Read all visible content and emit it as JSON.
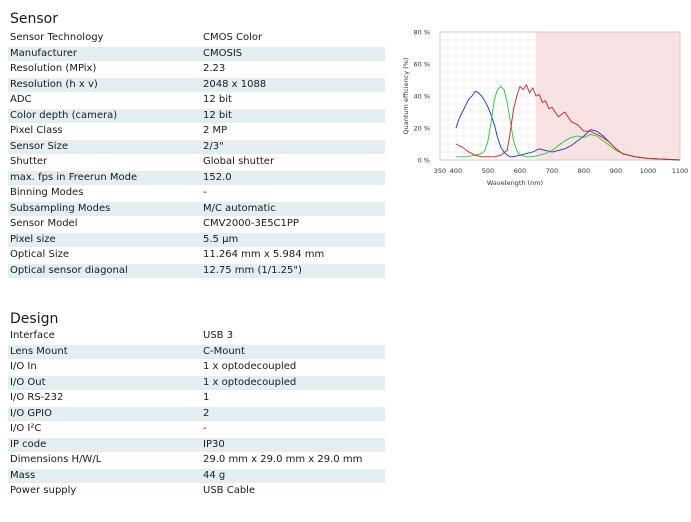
{
  "sensor_section": {
    "title": "Sensor",
    "rows": [
      {
        "label": "Sensor Technology",
        "value": "CMOS Color"
      },
      {
        "label": "Manufacturer",
        "value": "CMOSIS"
      },
      {
        "label": "Resolution (MPix)",
        "value": "2.23"
      },
      {
        "label": "Resolution (h x v)",
        "value": "2048 x 1088"
      },
      {
        "label": "ADC",
        "value": "12 bit"
      },
      {
        "label": "Color depth (camera)",
        "value": "12 bit"
      },
      {
        "label": "Pixel Class",
        "value": "2 MP"
      },
      {
        "label": "Sensor Size",
        "value": "2/3\""
      },
      {
        "label": "Shutter",
        "value": "Global shutter"
      },
      {
        "label": "max. fps in Freerun Mode",
        "value": "152.0"
      },
      {
        "label": "Binning Modes",
        "value": "-"
      },
      {
        "label": "Subsampling Modes",
        "value": "M/C automatic"
      },
      {
        "label": "Sensor Model",
        "value": "CMV2000-3E5C1PP"
      },
      {
        "label": "Pixel size",
        "value": "5.5 µm"
      },
      {
        "label": "Optical Size",
        "value": "11.264 mm x 5.984 mm"
      },
      {
        "label": "Optical sensor diagonal",
        "value": "12.75 mm (1/1.25\")"
      }
    ]
  },
  "design_section": {
    "title": "Design",
    "rows": [
      {
        "label": "Interface",
        "value": "USB 3"
      },
      {
        "label": "Lens Mount",
        "value": "C-Mount"
      },
      {
        "label": "I/O In",
        "value": "1 x optodecoupled"
      },
      {
        "label": "I/O Out",
        "value": "1 x optodecoupled"
      },
      {
        "label": "I/O RS-232",
        "value": "1"
      },
      {
        "label": "I/O GPIO",
        "value": "2"
      },
      {
        "label": "I/O I²C",
        "value": "-"
      },
      {
        "label": "IP code",
        "value": "IP30"
      },
      {
        "label": "Dimensions H/W/L",
        "value": "29.0 mm x 29.0 mm x 29.0 mm"
      },
      {
        "label": "Mass",
        "value": "44 g"
      },
      {
        "label": "Power supply",
        "value": "USB Cable"
      }
    ]
  },
  "chart_data": {
    "type": "line",
    "title": "",
    "xlabel": "Wavelength (nm)",
    "ylabel": "Quantum efficiency (%)",
    "xlim": [
      350,
      1100
    ],
    "ylim": [
      0,
      80
    ],
    "xticks": [
      350,
      400,
      500,
      600,
      700,
      800,
      900,
      1000,
      1100
    ],
    "yticks": [
      0,
      20,
      40,
      60,
      80
    ],
    "ytick_labels": [
      "0 %",
      "20 %",
      "40 %",
      "60 %",
      "80 %"
    ],
    "grid": true,
    "shaded_region": {
      "x_from": 650,
      "x_to": 1100,
      "color": "#fbe3e3"
    },
    "series": [
      {
        "color": "#1f2fd0",
        "x": [
          400,
          410,
          420,
          430,
          440,
          450,
          460,
          470,
          480,
          490,
          500,
          510,
          520,
          530,
          540,
          550,
          560,
          570,
          580,
          600,
          620,
          640,
          660,
          680,
          700,
          720,
          740,
          760,
          780,
          800,
          820,
          840,
          860,
          880,
          900,
          920,
          940,
          960,
          980,
          1000,
          1050,
          1100
        ],
        "y": [
          20,
          26,
          30,
          34,
          38,
          40,
          43,
          42,
          40,
          37,
          33,
          28,
          22,
          14,
          8,
          5,
          3,
          2,
          2,
          3,
          4,
          5,
          7,
          6,
          5,
          6,
          7,
          9,
          12,
          15,
          19,
          18,
          15,
          11,
          7,
          4,
          3,
          2,
          1.5,
          1,
          0.5,
          0
        ]
      },
      {
        "color": "#22cc22",
        "x": [
          400,
          430,
          460,
          480,
          490,
          500,
          510,
          520,
          530,
          540,
          550,
          560,
          570,
          580,
          590,
          600,
          620,
          640,
          660,
          680,
          700,
          720,
          740,
          760,
          780,
          800,
          820,
          840,
          860,
          880,
          900,
          920,
          940,
          960,
          1000,
          1050,
          1100
        ],
        "y": [
          2,
          2,
          3,
          4,
          6,
          12,
          24,
          38,
          44,
          46,
          44,
          36,
          24,
          12,
          6,
          3,
          2,
          2,
          3,
          4,
          6,
          9,
          12,
          14,
          15,
          14,
          16,
          15,
          12,
          9,
          6,
          4,
          3,
          2,
          1,
          0.5,
          0
        ]
      },
      {
        "color": "#d02020",
        "x": [
          400,
          420,
          440,
          460,
          480,
          500,
          520,
          540,
          560,
          570,
          580,
          590,
          600,
          610,
          620,
          630,
          640,
          650,
          660,
          670,
          680,
          690,
          700,
          720,
          740,
          760,
          780,
          800,
          820,
          840,
          860,
          880,
          900,
          920,
          940,
          960,
          1000,
          1050,
          1100
        ],
        "y": [
          10,
          8,
          5,
          3,
          2,
          2,
          2,
          3,
          6,
          18,
          32,
          40,
          46,
          44,
          47,
          42,
          45,
          40,
          41,
          36,
          37,
          32,
          33,
          27,
          30,
          24,
          22,
          18,
          18,
          16,
          14,
          11,
          7,
          4,
          3,
          2,
          1,
          0.5,
          0
        ]
      }
    ]
  }
}
